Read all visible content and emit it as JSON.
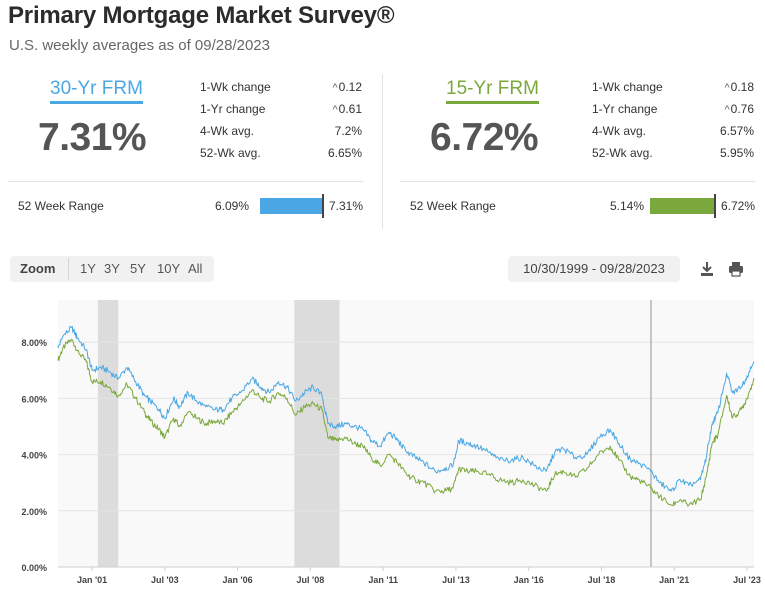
{
  "header": {
    "title": "Primary Mortgage Market Survey®",
    "subtitle": "U.S. weekly averages as of 09/28/2023"
  },
  "frm30": {
    "label": "30-Yr FRM",
    "rate": "7.31%",
    "stats": [
      {
        "label": "1-Wk change",
        "value": "0.12",
        "arrow": true
      },
      {
        "label": "1-Yr change",
        "value": "0.61",
        "arrow": true
      },
      {
        "label": "4-Wk avg.",
        "value": "7.2%",
        "arrow": false
      },
      {
        "label": "52-Wk avg.",
        "value": "6.65%",
        "arrow": false
      }
    ],
    "range_label": "52 Week Range",
    "range_min": "6.09%",
    "range_max": "7.31%",
    "color": "#4aa7e3"
  },
  "frm15": {
    "label": "15-Yr FRM",
    "rate": "6.72%",
    "stats": [
      {
        "label": "1-Wk change",
        "value": "0.18",
        "arrow": true
      },
      {
        "label": "1-Yr change",
        "value": "0.76",
        "arrow": true
      },
      {
        "label": "4-Wk avg.",
        "value": "6.57%",
        "arrow": false
      },
      {
        "label": "52-Wk avg.",
        "value": "5.95%",
        "arrow": false
      }
    ],
    "range_label": "52 Week Range",
    "range_min": "5.14%",
    "range_max": "6.72%",
    "color": "#7ba83c"
  },
  "toolbar": {
    "zoom_label": "Zoom",
    "zoom_options": [
      "1Y",
      "3Y",
      "5Y",
      "10Y",
      "All"
    ],
    "date_range": "10/30/1999 - 09/28/2023",
    "download_icon": "download-icon",
    "print_icon": "print-icon"
  },
  "chart_data": {
    "type": "line",
    "x_range": [
      1999.83,
      2023.74
    ],
    "ylim": [
      0,
      9.5
    ],
    "y_ticks": [
      "0.00%",
      "2.00%",
      "4.00%",
      "6.00%",
      "8.00%"
    ],
    "y_tick_values": [
      0,
      2,
      4,
      6,
      8
    ],
    "x_ticks": [
      "Jan '01",
      "Jul '03",
      "Jan '06",
      "Jul '08",
      "Jan '11",
      "Jul '13",
      "Jan '16",
      "Jul '18",
      "Jan '21",
      "Jul '23"
    ],
    "x_tick_values": [
      2001.0,
      2003.5,
      2006.0,
      2008.5,
      2011.0,
      2013.5,
      2016.0,
      2018.5,
      2021.0,
      2023.5
    ],
    "recession_bands": [
      [
        2001.2,
        2001.9
      ],
      [
        2007.95,
        2009.5
      ]
    ],
    "marker_line_x": 2020.2,
    "series": [
      {
        "name": "30-Yr FRM",
        "color": "#4aa7e3",
        "x": [
          1999.83,
          2000.0,
          2000.3,
          2000.5,
          2000.8,
          2001.0,
          2001.3,
          2001.6,
          2001.9,
          2002.2,
          2002.5,
          2002.8,
          2003.0,
          2003.3,
          2003.5,
          2003.8,
          2004.0,
          2004.3,
          2004.6,
          2004.9,
          2005.2,
          2005.5,
          2005.8,
          2006.1,
          2006.5,
          2006.8,
          2007.1,
          2007.4,
          2007.7,
          2008.0,
          2008.3,
          2008.6,
          2008.9,
          2009.1,
          2009.4,
          2009.7,
          2010.0,
          2010.3,
          2010.6,
          2010.9,
          2011.2,
          2011.5,
          2011.8,
          2012.1,
          2012.4,
          2012.8,
          2013.1,
          2013.4,
          2013.6,
          2013.9,
          2014.2,
          2014.6,
          2015.0,
          2015.4,
          2015.8,
          2016.2,
          2016.6,
          2016.9,
          2017.2,
          2017.6,
          2018.0,
          2018.4,
          2018.8,
          2019.1,
          2019.5,
          2019.8,
          2020.2,
          2020.5,
          2020.9,
          2021.2,
          2021.5,
          2021.9,
          2022.1,
          2022.3,
          2022.5,
          2022.8,
          2023.0,
          2023.3,
          2023.5,
          2023.74
        ],
        "y": [
          7.79,
          8.21,
          8.52,
          8.15,
          7.73,
          7.0,
          7.1,
          6.95,
          6.7,
          7.1,
          6.6,
          6.1,
          5.9,
          5.6,
          5.3,
          6.0,
          5.7,
          6.2,
          5.9,
          5.7,
          5.6,
          5.6,
          6.0,
          6.2,
          6.7,
          6.4,
          6.2,
          6.6,
          6.4,
          5.9,
          6.2,
          6.4,
          6.1,
          5.1,
          5.0,
          5.1,
          5.0,
          4.9,
          4.5,
          4.3,
          4.8,
          4.5,
          4.1,
          3.9,
          3.7,
          3.4,
          3.5,
          3.6,
          4.5,
          4.4,
          4.3,
          4.1,
          3.8,
          3.8,
          3.9,
          3.6,
          3.4,
          4.1,
          4.2,
          3.9,
          4.0,
          4.6,
          4.9,
          4.4,
          3.8,
          3.7,
          3.4,
          3.0,
          2.7,
          3.1,
          2.9,
          3.1,
          3.9,
          5.1,
          5.5,
          6.9,
          6.2,
          6.4,
          6.8,
          7.31
        ]
      },
      {
        "name": "15-Yr FRM",
        "color": "#7ba83c",
        "x": [
          1999.83,
          2000.0,
          2000.3,
          2000.5,
          2000.8,
          2001.0,
          2001.3,
          2001.6,
          2001.9,
          2002.2,
          2002.5,
          2002.8,
          2003.0,
          2003.3,
          2003.5,
          2003.8,
          2004.0,
          2004.3,
          2004.6,
          2004.9,
          2005.2,
          2005.5,
          2005.8,
          2006.1,
          2006.5,
          2006.8,
          2007.1,
          2007.4,
          2007.7,
          2008.0,
          2008.3,
          2008.6,
          2008.9,
          2009.1,
          2009.4,
          2009.7,
          2010.0,
          2010.3,
          2010.6,
          2010.9,
          2011.2,
          2011.5,
          2011.8,
          2012.1,
          2012.4,
          2012.8,
          2013.1,
          2013.4,
          2013.6,
          2013.9,
          2014.2,
          2014.6,
          2015.0,
          2015.4,
          2015.8,
          2016.2,
          2016.6,
          2016.9,
          2017.2,
          2017.6,
          2018.0,
          2018.4,
          2018.8,
          2019.1,
          2019.5,
          2019.8,
          2020.2,
          2020.5,
          2020.9,
          2021.2,
          2021.5,
          2021.9,
          2022.1,
          2022.3,
          2022.5,
          2022.8,
          2023.0,
          2023.3,
          2023.5,
          2023.74
        ],
        "y": [
          7.35,
          7.8,
          8.1,
          7.7,
          7.3,
          6.6,
          6.6,
          6.4,
          6.1,
          6.5,
          6.0,
          5.5,
          5.2,
          4.9,
          4.6,
          5.3,
          5.0,
          5.5,
          5.3,
          5.1,
          5.2,
          5.1,
          5.5,
          5.8,
          6.3,
          6.0,
          5.9,
          6.2,
          6.0,
          5.4,
          5.7,
          5.8,
          5.6,
          4.6,
          4.5,
          4.6,
          4.4,
          4.3,
          3.9,
          3.6,
          4.0,
          3.7,
          3.3,
          3.1,
          3.0,
          2.7,
          2.7,
          2.8,
          3.5,
          3.4,
          3.4,
          3.3,
          3.1,
          3.0,
          3.1,
          2.9,
          2.7,
          3.3,
          3.4,
          3.2,
          3.5,
          4.0,
          4.3,
          3.8,
          3.2,
          3.1,
          2.8,
          2.5,
          2.2,
          2.4,
          2.2,
          2.4,
          3.2,
          4.4,
          4.7,
          6.1,
          5.3,
          5.6,
          6.0,
          6.72
        ]
      }
    ]
  }
}
